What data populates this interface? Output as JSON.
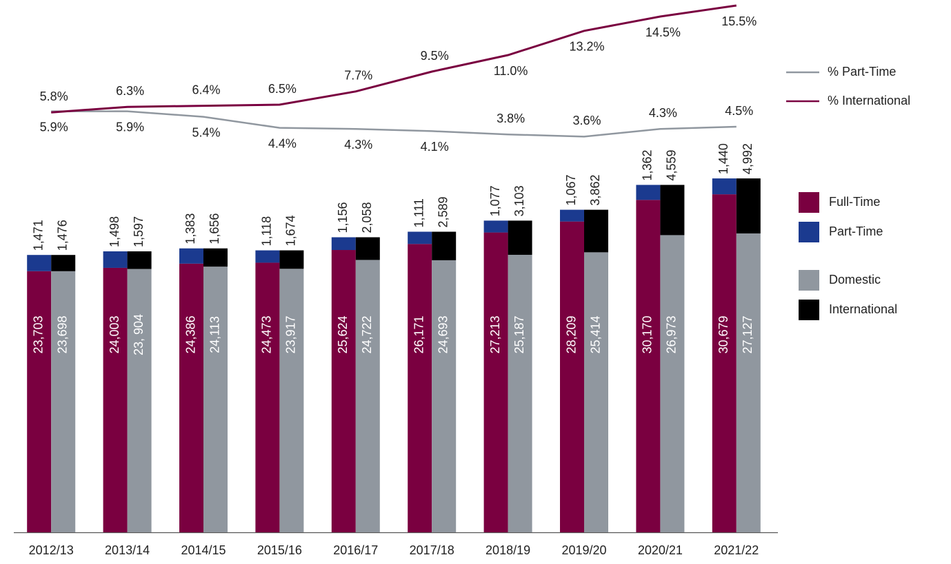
{
  "chart_data": {
    "type": "bar",
    "categories": [
      "2012/13",
      "2013/14",
      "2014/15",
      "2015/16",
      "2016/17",
      "2017/18",
      "2018/19",
      "2019/20",
      "2020/21",
      "2021/22"
    ],
    "ylim": [
      0,
      40000
    ],
    "y2lim": [
      0,
      16
    ],
    "series": [
      {
        "name": "Full-Time",
        "color": "#7a0040",
        "stack": "a",
        "values": [
          23703,
          24003,
          24386,
          24473,
          25624,
          26171,
          27213,
          28209,
          30170,
          30679
        ],
        "value_labels": [
          "23,703",
          "24,003",
          "24,386",
          "24,473",
          "25,624",
          "26,171",
          "27,213",
          "28,209",
          "30,170",
          "30,679"
        ]
      },
      {
        "name": "Part-Time",
        "color": "#1b3a8f",
        "stack": "a",
        "values": [
          1471,
          1498,
          1383,
          1118,
          1156,
          1111,
          1077,
          1067,
          1362,
          1440
        ],
        "value_labels": [
          "1,471",
          "1,498",
          "1,383",
          "1,118",
          "1,156",
          "1,111",
          "1,077",
          "1,067",
          "1,362",
          "1,440"
        ]
      },
      {
        "name": "Domestic",
        "color": "#90979f",
        "stack": "b",
        "values": [
          23698,
          23904,
          24113,
          23917,
          24722,
          24693,
          25187,
          25414,
          26973,
          27127
        ],
        "value_labels": [
          "23,698",
          "23, 904",
          "24,113",
          "23,917",
          "24,722",
          "24,693",
          "25,187",
          "25,414",
          "26,973",
          "27,127"
        ]
      },
      {
        "name": "International",
        "color": "#000000",
        "stack": "b",
        "values": [
          1476,
          1597,
          1656,
          1674,
          2058,
          2589,
          3103,
          3862,
          4559,
          4992
        ],
        "value_labels": [
          "1,476",
          "1,597",
          "1,656",
          "1,674",
          "2,058",
          "2,589",
          "3,103",
          "3,862",
          "4,559",
          "4,992"
        ]
      },
      {
        "name": "% Part-Time",
        "color": "#90979f",
        "type": "line",
        "axis": "y2",
        "values": [
          5.9,
          5.9,
          5.4,
          4.4,
          4.3,
          4.1,
          3.8,
          3.6,
          4.3,
          4.5
        ],
        "value_labels": [
          "5.9%",
          "5.9%",
          "5.4%",
          "4.4%",
          "4.3%",
          "4.1%",
          "3.8%",
          "3.6%",
          "4.3%",
          "4.5%"
        ]
      },
      {
        "name": "% International",
        "color": "#7a0040",
        "type": "line",
        "axis": "y2",
        "values": [
          5.8,
          6.3,
          6.4,
          6.5,
          7.7,
          9.5,
          11.0,
          13.2,
          14.5,
          15.5
        ],
        "value_labels": [
          "5.8%",
          "6.3%",
          "6.4%",
          "6.5%",
          "7.7%",
          "9.5%",
          "11.0%",
          "13.2%",
          "14.5%",
          "15.5%"
        ]
      }
    ]
  }
}
